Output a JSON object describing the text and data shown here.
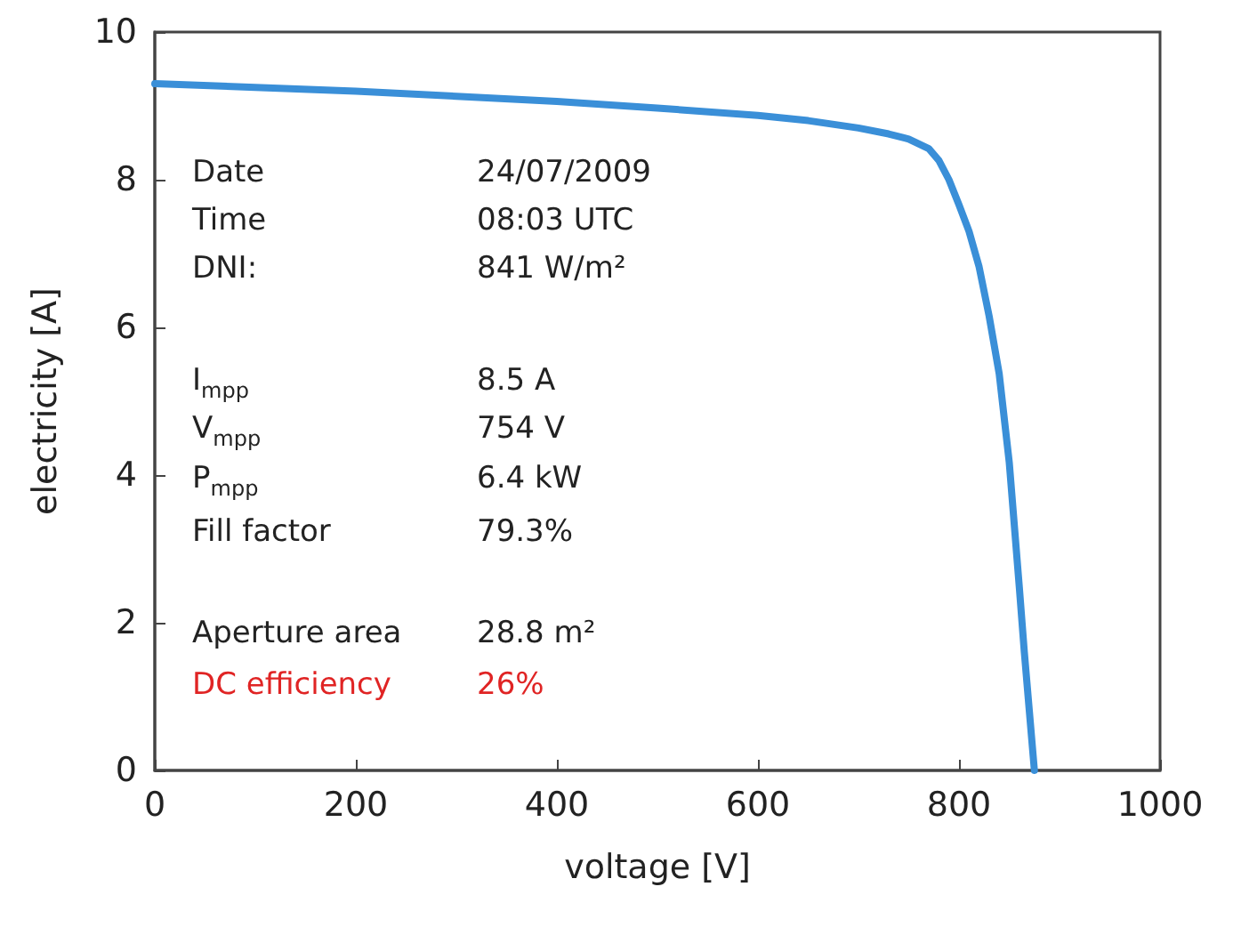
{
  "chart_data": {
    "type": "line",
    "xlabel": "voltage [V]",
    "ylabel": "electricity [A]",
    "xlim": [
      0,
      1000
    ],
    "xticks": [
      0,
      200,
      400,
      600,
      800,
      1000
    ],
    "ylim": [
      0,
      10
    ],
    "yticks": [
      0,
      2,
      4,
      6,
      8,
      10
    ],
    "grid": false,
    "marker": "none",
    "line_style": "solid",
    "series": [
      {
        "color": "#3a8fd8",
        "x": [
          0,
          100,
          200,
          300,
          400,
          500,
          600,
          650,
          700,
          730,
          750,
          770,
          780,
          790,
          800,
          810,
          820,
          830,
          840,
          850,
          860,
          865,
          870,
          875
        ],
        "values": [
          9.3,
          9.25,
          9.2,
          9.13,
          9.06,
          8.97,
          8.87,
          8.8,
          8.7,
          8.62,
          8.55,
          8.42,
          8.26,
          8.0,
          7.66,
          7.3,
          6.82,
          6.15,
          5.37,
          4.17,
          2.48,
          1.6,
          0.8,
          0
        ]
      }
    ],
    "annotations": [
      "Date",
      "24/07/2009",
      "Time",
      "08:03 UTC",
      "DNI:",
      "841 W/m²",
      "I$_{mpp}$",
      "8.5 A",
      "V$_{mpp}$",
      "754 V",
      "P$_{mpp}$",
      "6.4 kW",
      "Fill factor",
      "79.3%",
      "Aperture area",
      "28.8 m²",
      "DC efficiency",
      "26%"
    ]
  }
}
